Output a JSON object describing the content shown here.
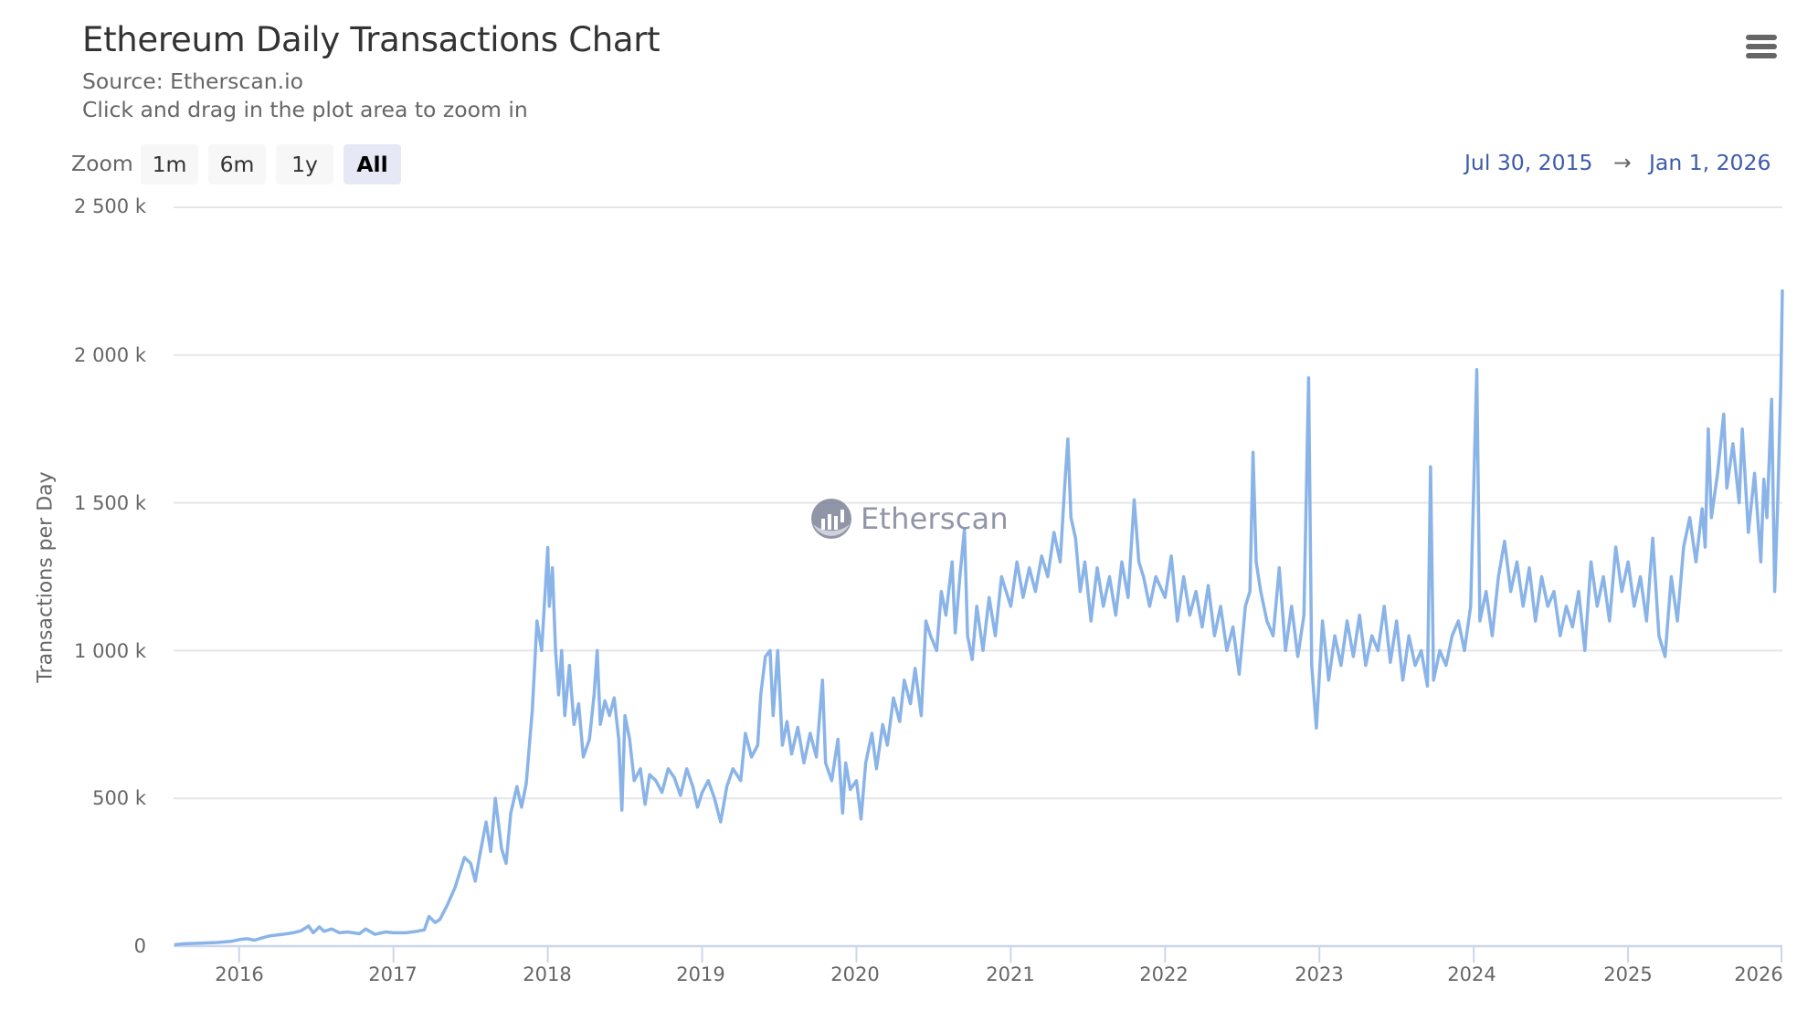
{
  "header": {
    "title": "Ethereum Daily Transactions Chart",
    "subtitle_source": "Source: Etherscan.io",
    "subtitle_hint": "Click and drag in the plot area to zoom in",
    "menu_icon": "hamburger-menu-icon"
  },
  "range_selector": {
    "label": "Zoom",
    "buttons": [
      {
        "label": "1m",
        "active": false
      },
      {
        "label": "6m",
        "active": false
      },
      {
        "label": "1y",
        "active": false
      },
      {
        "label": "All",
        "active": true
      }
    ],
    "from": "Jul 30, 2015",
    "arrow": "→",
    "to": "Jan 1, 2026"
  },
  "watermark": {
    "text": "Etherscan",
    "icon": "etherscan-logo-icon"
  },
  "colors": {
    "line": "#8ab4e8",
    "grid": "#e6e6e6",
    "axis": "#ccd6eb",
    "range_date": "#3d5ba9",
    "active_button_bg": "#e6e9f5",
    "button_bg": "#f7f7f7"
  },
  "chart_data": {
    "type": "line",
    "title": "Ethereum Daily Transactions Chart",
    "subtitle": "Source: Etherscan.io",
    "xlabel": "",
    "ylabel": "Transactions per Day",
    "x_range": [
      "Jul 30, 2015",
      "Jan 1, 2026"
    ],
    "ylim": [
      0,
      2500000
    ],
    "y_ticks": [
      0,
      500000,
      1000000,
      1500000,
      2000000,
      2500000
    ],
    "y_tick_labels": [
      "0",
      "500 k",
      "1 000 k",
      "1 500 k",
      "2 000 k",
      "2 500 k"
    ],
    "x_ticks": [
      "2016",
      "2017",
      "2018",
      "2019",
      "2020",
      "2021",
      "2022",
      "2023",
      "2024",
      "2025",
      "2026"
    ],
    "grid": true,
    "legend": null,
    "units": "thousands of transactions per day (approximate, read from chart)",
    "series": [
      {
        "name": "Transactions per Day",
        "points": [
          [
            2015.58,
            5
          ],
          [
            2015.65,
            8
          ],
          [
            2015.75,
            10
          ],
          [
            2015.85,
            12
          ],
          [
            2015.95,
            16
          ],
          [
            2016.0,
            22
          ],
          [
            2016.05,
            25
          ],
          [
            2016.1,
            20
          ],
          [
            2016.15,
            28
          ],
          [
            2016.2,
            35
          ],
          [
            2016.28,
            40
          ],
          [
            2016.35,
            45
          ],
          [
            2016.4,
            52
          ],
          [
            2016.45,
            68
          ],
          [
            2016.48,
            45
          ],
          [
            2016.52,
            65
          ],
          [
            2016.55,
            50
          ],
          [
            2016.6,
            58
          ],
          [
            2016.65,
            45
          ],
          [
            2016.7,
            48
          ],
          [
            2016.78,
            42
          ],
          [
            2016.82,
            58
          ],
          [
            2016.88,
            40
          ],
          [
            2016.95,
            48
          ],
          [
            2017.0,
            45
          ],
          [
            2017.08,
            45
          ],
          [
            2017.15,
            50
          ],
          [
            2017.2,
            55
          ],
          [
            2017.23,
            100
          ],
          [
            2017.27,
            80
          ],
          [
            2017.3,
            90
          ],
          [
            2017.35,
            140
          ],
          [
            2017.4,
            200
          ],
          [
            2017.43,
            250
          ],
          [
            2017.46,
            300
          ],
          [
            2017.5,
            280
          ],
          [
            2017.53,
            220
          ],
          [
            2017.56,
            310
          ],
          [
            2017.6,
            420
          ],
          [
            2017.63,
            320
          ],
          [
            2017.66,
            500
          ],
          [
            2017.7,
            330
          ],
          [
            2017.73,
            280
          ],
          [
            2017.76,
            450
          ],
          [
            2017.8,
            540
          ],
          [
            2017.83,
            470
          ],
          [
            2017.86,
            550
          ],
          [
            2017.9,
            800
          ],
          [
            2017.93,
            1100
          ],
          [
            2017.96,
            1000
          ],
          [
            2018.0,
            1349
          ],
          [
            2018.01,
            1150
          ],
          [
            2018.03,
            1280
          ],
          [
            2018.05,
            1000
          ],
          [
            2018.07,
            850
          ],
          [
            2018.09,
            1000
          ],
          [
            2018.11,
            780
          ],
          [
            2018.14,
            950
          ],
          [
            2018.17,
            750
          ],
          [
            2018.2,
            820
          ],
          [
            2018.23,
            640
          ],
          [
            2018.27,
            700
          ],
          [
            2018.3,
            850
          ],
          [
            2018.32,
            1000
          ],
          [
            2018.34,
            750
          ],
          [
            2018.37,
            830
          ],
          [
            2018.4,
            780
          ],
          [
            2018.43,
            840
          ],
          [
            2018.46,
            700
          ],
          [
            2018.48,
            460
          ],
          [
            2018.5,
            780
          ],
          [
            2018.53,
            700
          ],
          [
            2018.56,
            560
          ],
          [
            2018.6,
            600
          ],
          [
            2018.63,
            480
          ],
          [
            2018.66,
            580
          ],
          [
            2018.7,
            560
          ],
          [
            2018.74,
            520
          ],
          [
            2018.78,
            600
          ],
          [
            2018.82,
            570
          ],
          [
            2018.86,
            510
          ],
          [
            2018.9,
            600
          ],
          [
            2018.94,
            540
          ],
          [
            2018.97,
            470
          ],
          [
            2019.0,
            520
          ],
          [
            2019.04,
            560
          ],
          [
            2019.08,
            500
          ],
          [
            2019.12,
            420
          ],
          [
            2019.16,
            540
          ],
          [
            2019.2,
            600
          ],
          [
            2019.25,
            560
          ],
          [
            2019.28,
            720
          ],
          [
            2019.32,
            640
          ],
          [
            2019.36,
            680
          ],
          [
            2019.38,
            850
          ],
          [
            2019.41,
            980
          ],
          [
            2019.44,
            1000
          ],
          [
            2019.46,
            780
          ],
          [
            2019.49,
            1000
          ],
          [
            2019.52,
            680
          ],
          [
            2019.55,
            760
          ],
          [
            2019.58,
            650
          ],
          [
            2019.62,
            740
          ],
          [
            2019.66,
            620
          ],
          [
            2019.7,
            720
          ],
          [
            2019.74,
            640
          ],
          [
            2019.78,
            900
          ],
          [
            2019.8,
            620
          ],
          [
            2019.84,
            560
          ],
          [
            2019.88,
            700
          ],
          [
            2019.91,
            450
          ],
          [
            2019.93,
            620
          ],
          [
            2019.96,
            530
          ],
          [
            2020.0,
            560
          ],
          [
            2020.03,
            430
          ],
          [
            2020.06,
            620
          ],
          [
            2020.1,
            720
          ],
          [
            2020.13,
            600
          ],
          [
            2020.17,
            750
          ],
          [
            2020.2,
            680
          ],
          [
            2020.24,
            840
          ],
          [
            2020.28,
            760
          ],
          [
            2020.31,
            900
          ],
          [
            2020.35,
            820
          ],
          [
            2020.38,
            940
          ],
          [
            2020.42,
            780
          ],
          [
            2020.45,
            1100
          ],
          [
            2020.48,
            1050
          ],
          [
            2020.52,
            1000
          ],
          [
            2020.55,
            1200
          ],
          [
            2020.58,
            1120
          ],
          [
            2020.62,
            1300
          ],
          [
            2020.64,
            1060
          ],
          [
            2020.67,
            1250
          ],
          [
            2020.7,
            1410
          ],
          [
            2020.72,
            1050
          ],
          [
            2020.75,
            970
          ],
          [
            2020.78,
            1150
          ],
          [
            2020.82,
            1000
          ],
          [
            2020.86,
            1180
          ],
          [
            2020.9,
            1050
          ],
          [
            2020.94,
            1250
          ],
          [
            2021.0,
            1150
          ],
          [
            2021.04,
            1300
          ],
          [
            2021.08,
            1180
          ],
          [
            2021.12,
            1280
          ],
          [
            2021.16,
            1200
          ],
          [
            2021.2,
            1320
          ],
          [
            2021.24,
            1250
          ],
          [
            2021.28,
            1400
          ],
          [
            2021.32,
            1300
          ],
          [
            2021.35,
            1560
          ],
          [
            2021.37,
            1716
          ],
          [
            2021.39,
            1450
          ],
          [
            2021.42,
            1380
          ],
          [
            2021.45,
            1200
          ],
          [
            2021.48,
            1300
          ],
          [
            2021.52,
            1100
          ],
          [
            2021.56,
            1280
          ],
          [
            2021.6,
            1150
          ],
          [
            2021.64,
            1250
          ],
          [
            2021.68,
            1120
          ],
          [
            2021.72,
            1300
          ],
          [
            2021.76,
            1180
          ],
          [
            2021.8,
            1510
          ],
          [
            2021.83,
            1300
          ],
          [
            2021.86,
            1250
          ],
          [
            2021.9,
            1150
          ],
          [
            2021.94,
            1250
          ],
          [
            2022.0,
            1180
          ],
          [
            2022.04,
            1320
          ],
          [
            2022.08,
            1100
          ],
          [
            2022.12,
            1250
          ],
          [
            2022.16,
            1120
          ],
          [
            2022.2,
            1200
          ],
          [
            2022.24,
            1080
          ],
          [
            2022.28,
            1220
          ],
          [
            2022.32,
            1050
          ],
          [
            2022.36,
            1150
          ],
          [
            2022.4,
            1000
          ],
          [
            2022.44,
            1080
          ],
          [
            2022.48,
            920
          ],
          [
            2022.52,
            1150
          ],
          [
            2022.55,
            1200
          ],
          [
            2022.57,
            1671
          ],
          [
            2022.59,
            1300
          ],
          [
            2022.62,
            1200
          ],
          [
            2022.66,
            1100
          ],
          [
            2022.7,
            1050
          ],
          [
            2022.74,
            1280
          ],
          [
            2022.78,
            1000
          ],
          [
            2022.82,
            1150
          ],
          [
            2022.86,
            980
          ],
          [
            2022.9,
            1120
          ],
          [
            2022.93,
            1923
          ],
          [
            2022.95,
            950
          ],
          [
            2022.98,
            738
          ],
          [
            2023.02,
            1100
          ],
          [
            2023.06,
            900
          ],
          [
            2023.1,
            1050
          ],
          [
            2023.14,
            950
          ],
          [
            2023.18,
            1100
          ],
          [
            2023.22,
            980
          ],
          [
            2023.26,
            1120
          ],
          [
            2023.3,
            950
          ],
          [
            2023.34,
            1050
          ],
          [
            2023.38,
            1000
          ],
          [
            2023.42,
            1150
          ],
          [
            2023.46,
            960
          ],
          [
            2023.5,
            1100
          ],
          [
            2023.54,
            900
          ],
          [
            2023.58,
            1050
          ],
          [
            2023.62,
            950
          ],
          [
            2023.66,
            1000
          ],
          [
            2023.7,
            880
          ],
          [
            2023.72,
            1622
          ],
          [
            2023.74,
            900
          ],
          [
            2023.78,
            1000
          ],
          [
            2023.82,
            950
          ],
          [
            2023.86,
            1050
          ],
          [
            2023.9,
            1100
          ],
          [
            2023.94,
            1000
          ],
          [
            2023.98,
            1150
          ],
          [
            2024.02,
            1951
          ],
          [
            2024.04,
            1100
          ],
          [
            2024.08,
            1200
          ],
          [
            2024.12,
            1050
          ],
          [
            2024.16,
            1250
          ],
          [
            2024.2,
            1370
          ],
          [
            2024.24,
            1200
          ],
          [
            2024.28,
            1300
          ],
          [
            2024.32,
            1150
          ],
          [
            2024.36,
            1280
          ],
          [
            2024.4,
            1100
          ],
          [
            2024.44,
            1250
          ],
          [
            2024.48,
            1150
          ],
          [
            2024.52,
            1200
          ],
          [
            2024.56,
            1050
          ],
          [
            2024.6,
            1150
          ],
          [
            2024.64,
            1080
          ],
          [
            2024.68,
            1200
          ],
          [
            2024.72,
            1000
          ],
          [
            2024.76,
            1300
          ],
          [
            2024.8,
            1150
          ],
          [
            2024.84,
            1250
          ],
          [
            2024.88,
            1100
          ],
          [
            2024.92,
            1350
          ],
          [
            2024.96,
            1200
          ],
          [
            2025.0,
            1300
          ],
          [
            2025.04,
            1150
          ],
          [
            2025.08,
            1250
          ],
          [
            2025.12,
            1100
          ],
          [
            2025.16,
            1380
          ],
          [
            2025.2,
            1050
          ],
          [
            2025.24,
            980
          ],
          [
            2025.28,
            1250
          ],
          [
            2025.32,
            1100
          ],
          [
            2025.36,
            1350
          ],
          [
            2025.4,
            1450
          ],
          [
            2025.44,
            1300
          ],
          [
            2025.48,
            1480
          ],
          [
            2025.5,
            1350
          ],
          [
            2025.52,
            1750
          ],
          [
            2025.54,
            1450
          ],
          [
            2025.58,
            1600
          ],
          [
            2025.62,
            1800
          ],
          [
            2025.64,
            1550
          ],
          [
            2025.68,
            1700
          ],
          [
            2025.72,
            1500
          ],
          [
            2025.74,
            1750
          ],
          [
            2025.78,
            1400
          ],
          [
            2025.82,
            1600
          ],
          [
            2025.86,
            1300
          ],
          [
            2025.88,
            1580
          ],
          [
            2025.9,
            1450
          ],
          [
            2025.93,
            1850
          ],
          [
            2025.95,
            1200
          ],
          [
            2025.97,
            1500
          ],
          [
            2025.99,
            1900
          ],
          [
            2026.0,
            2222
          ]
        ]
      }
    ],
    "notable_peaks": [
      {
        "date": "Jan 2018",
        "value": 1349000
      },
      {
        "date": "May 2021",
        "value": 1716000
      },
      {
        "date": "Aug 2022",
        "value": 1671000
      },
      {
        "date": "Dec 2022",
        "value": 1923000
      },
      {
        "date": "Sep 2023",
        "value": 1622000
      },
      {
        "date": "Jan 2024",
        "value": 1951000
      },
      {
        "date": "Jan 2026",
        "value": 2222000
      }
    ]
  }
}
